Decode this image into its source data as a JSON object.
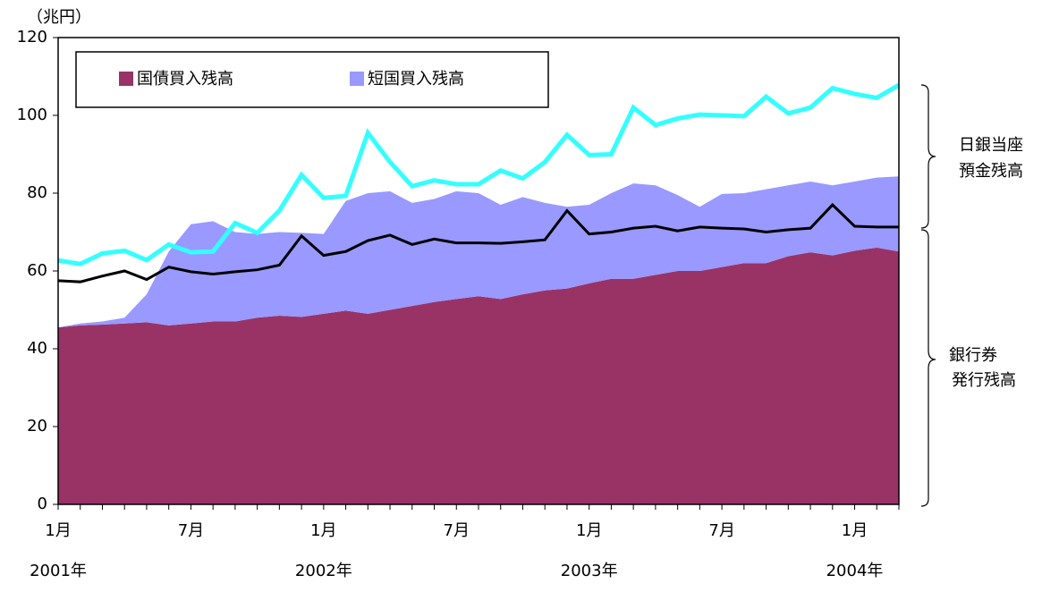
{
  "chart_data": {
    "type": "area",
    "unit_label": "（兆円）",
    "categories": [
      "1月",
      null,
      null,
      null,
      null,
      null,
      "7月",
      null,
      null,
      null,
      null,
      null,
      "1月",
      null,
      null,
      null,
      null,
      null,
      "7月",
      null,
      null,
      null,
      null,
      null,
      "1月",
      null,
      null,
      null,
      null,
      null,
      "7月",
      null,
      null,
      null,
      null,
      null,
      "1月",
      null,
      null
    ],
    "year_labels": [
      "2001年",
      "2002年",
      "2003年",
      "2004年"
    ],
    "ylim": [
      0,
      120
    ],
    "yticks": [
      0,
      20,
      40,
      60,
      80,
      100,
      120
    ],
    "legend": "top-left",
    "series": [
      {
        "name": "国債買入残高",
        "color": "#993366",
        "kind": "area",
        "values": [
          45.5,
          46,
          46.2,
          46.5,
          46.8,
          46,
          46.5,
          47,
          47,
          48,
          48.5,
          48.2,
          49,
          49.8,
          49,
          50,
          51,
          52,
          52.8,
          53.5,
          52.8,
          54,
          55,
          55.5,
          56.8,
          58,
          58,
          59,
          60,
          60,
          61,
          62,
          62,
          63.8,
          64.8,
          64,
          65.2,
          66,
          65
        ]
      },
      {
        "name": "短国買入残高",
        "color": "#9999ff",
        "kind": "area",
        "values": [
          0,
          0.5,
          0.8,
          1.5,
          7.2,
          19,
          25.5,
          25.8,
          23,
          21.5,
          21.5,
          21.6,
          20.5,
          28.2,
          31,
          30.5,
          26.5,
          26.5,
          27.7,
          26.5,
          24.2,
          25,
          22.5,
          21,
          20.2,
          22,
          24.5,
          23,
          19.5,
          16.5,
          18.8,
          18,
          19,
          18.2,
          18.2,
          18,
          17.8,
          18,
          19.3
        ]
      },
      {
        "color": "#000000",
        "kind": "line",
        "values": [
          57.5,
          57.2,
          58.7,
          60,
          57.8,
          61,
          59.8,
          59.2,
          59.8,
          60.3,
          61.5,
          69,
          64,
          65,
          67.8,
          69.2,
          66.8,
          68.2,
          67.2,
          67.2,
          67.1,
          67.5,
          68,
          75.5,
          69.5,
          70,
          71,
          71.5,
          70.3,
          71.3,
          71,
          70.8,
          70,
          70.6,
          71,
          77,
          71.5,
          71.3,
          71.3
        ]
      },
      {
        "color": "#33ffff",
        "kind": "line",
        "values": [
          62.7,
          61.8,
          64.5,
          65.2,
          62.8,
          66.8,
          64.8,
          65,
          72.3,
          69.8,
          75.5,
          84.7,
          78.8,
          79.3,
          95.5,
          88,
          81.8,
          83.3,
          82.3,
          82.3,
          85.8,
          83.8,
          88,
          95,
          89.8,
          90,
          102,
          97.5,
          99.2,
          100.2,
          100,
          99.8,
          104.8,
          100.5,
          102,
          107,
          105.5,
          104.5,
          107.8
        ]
      }
    ],
    "annotations": [
      [
        "日銀当座",
        "預金残高"
      ],
      [
        "銀行券",
        "発行残高"
      ]
    ]
  }
}
